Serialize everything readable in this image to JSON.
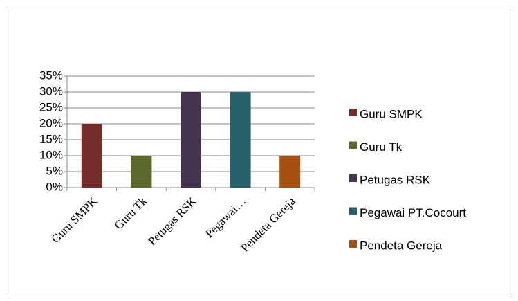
{
  "chart_data": {
    "type": "bar",
    "categories": [
      "Guru SMPK",
      "Guru Tk",
      "Petugas RSK",
      "Pegawai…",
      "Pendeta Gereja"
    ],
    "values": [
      20,
      10,
      30,
      30,
      10
    ],
    "colors": [
      "#772c2c",
      "#5b6a2c",
      "#44344f",
      "#27606a",
      "#a5500f"
    ],
    "legend": [
      "Guru SMPK",
      "Guru Tk",
      "Petugas RSK",
      "Pegawai PT.Cocourt",
      "Pendeta Gereja"
    ],
    "ylim": [
      0,
      35
    ],
    "yticks": [
      {
        "value": 0,
        "label": "0%"
      },
      {
        "value": 5,
        "label": "5%"
      },
      {
        "value": 10,
        "label": "10%"
      },
      {
        "value": 15,
        "label": "15%"
      },
      {
        "value": 20,
        "label": "20%"
      },
      {
        "value": 25,
        "label": "25%"
      },
      {
        "value": 30,
        "label": "30%"
      },
      {
        "value": 35,
        "label": "35%"
      }
    ],
    "grid": true
  }
}
